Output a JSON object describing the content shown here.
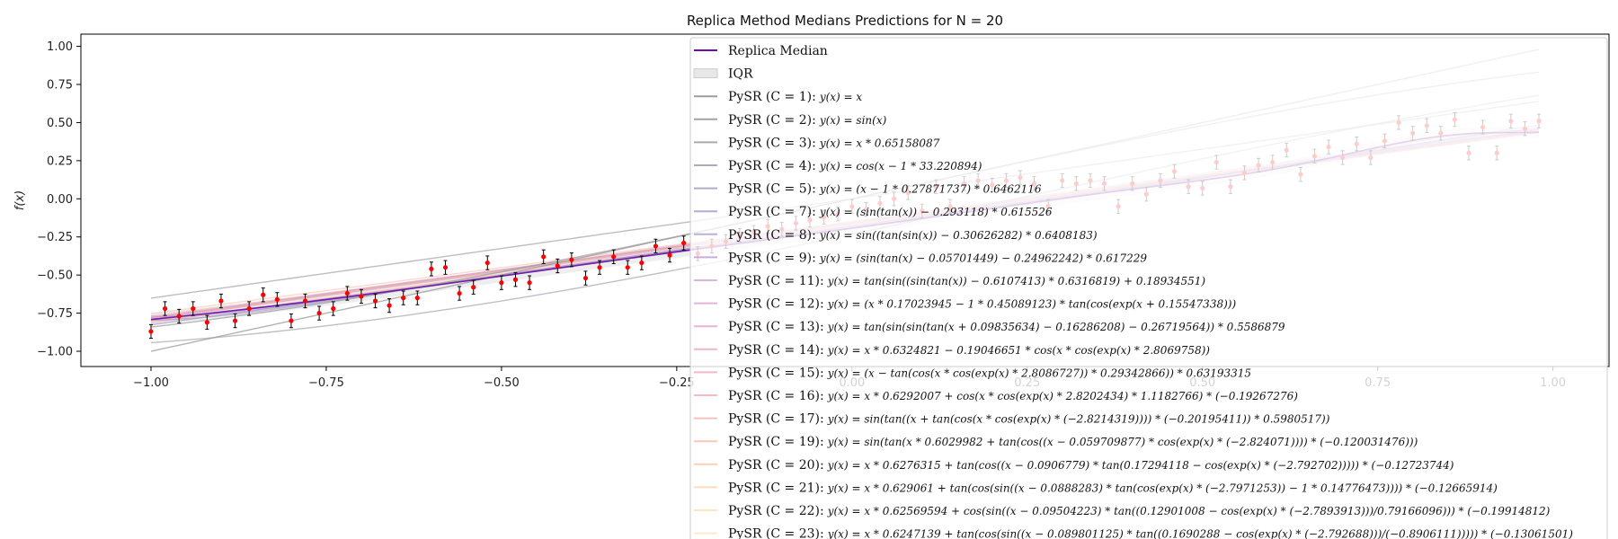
{
  "chart_data": {
    "type": "scatter",
    "title": "Replica Method Medians Predictions for N = 20",
    "xlabel": "",
    "ylabel": "f(x)",
    "xlim": [
      -1.1,
      1.08
    ],
    "ylim": [
      -1.1,
      1.08
    ],
    "xticks": [
      -1.0,
      -0.75,
      -0.5,
      -0.25,
      0.0,
      0.25,
      0.5,
      0.75,
      1.0
    ],
    "xtick_labels": [
      "−1.00",
      "−0.75",
      "−0.50",
      "−0.25",
      "0.00",
      "0.25",
      "0.50",
      "0.75",
      "1.00"
    ],
    "yticks": [
      -1.0,
      -0.75,
      -0.5,
      -0.25,
      0.0,
      0.25,
      0.5,
      0.75,
      1.0
    ],
    "ytick_labels": [
      "−1.00",
      "−0.75",
      "−0.50",
      "−0.25",
      "0.00",
      "0.25",
      "0.50",
      "0.75",
      "1.00"
    ],
    "legend_position": "top-right",
    "data_points": {
      "x": [
        -1.0,
        -0.98,
        -0.96,
        -0.94,
        -0.92,
        -0.9,
        -0.88,
        -0.86,
        -0.84,
        -0.82,
        -0.8,
        -0.78,
        -0.76,
        -0.74,
        -0.72,
        -0.7,
        -0.68,
        -0.66,
        -0.64,
        -0.62,
        -0.6,
        -0.58,
        -0.56,
        -0.54,
        -0.52,
        -0.5,
        -0.48,
        -0.46,
        -0.44,
        -0.42,
        -0.4,
        -0.38,
        -0.36,
        -0.34,
        -0.32,
        -0.3,
        -0.28,
        -0.26,
        -0.24,
        -0.22,
        -0.2,
        -0.18,
        -0.16,
        -0.14,
        -0.12,
        -0.1,
        -0.08,
        -0.06,
        -0.04,
        -0.02,
        0.0,
        0.02,
        0.04,
        0.06,
        0.08,
        0.1,
        0.12,
        0.14,
        0.16,
        0.18,
        0.2,
        0.22,
        0.24,
        0.26,
        0.28,
        0.3,
        0.32,
        0.34,
        0.36,
        0.38,
        0.4,
        0.42,
        0.44,
        0.46,
        0.48,
        0.5,
        0.52,
        0.54,
        0.56,
        0.58,
        0.6,
        0.62,
        0.64,
        0.66,
        0.68,
        0.7,
        0.72,
        0.74,
        0.76,
        0.78,
        0.8,
        0.82,
        0.84,
        0.86,
        0.88,
        0.9,
        0.92,
        0.94,
        0.96,
        0.98
      ],
      "y": [
        -0.87,
        -0.72,
        -0.77,
        -0.72,
        -0.81,
        -0.67,
        -0.8,
        -0.72,
        -0.63,
        -0.66,
        -0.8,
        -0.67,
        -0.75,
        -0.72,
        -0.62,
        -0.64,
        -0.67,
        -0.7,
        -0.65,
        -0.65,
        -0.46,
        -0.45,
        -0.62,
        -0.58,
        -0.42,
        -0.55,
        -0.53,
        -0.55,
        -0.38,
        -0.44,
        -0.4,
        -0.52,
        -0.45,
        -0.38,
        -0.45,
        -0.42,
        -0.31,
        -0.37,
        -0.29,
        -0.36,
        -0.31,
        -0.28,
        -0.24,
        -0.22,
        -0.18,
        -0.2,
        -0.16,
        -0.14,
        -0.12,
        -0.1,
        -0.05,
        -0.07,
        -0.03,
        0.0,
        0.04,
        -0.08,
        0.08,
        -0.05,
        0.1,
        0.12,
        0.09,
        0.12,
        0.14,
        0.1,
        -0.05,
        0.12,
        0.1,
        0.12,
        0.1,
        -0.05,
        0.1,
        0.03,
        0.12,
        0.18,
        0.08,
        0.07,
        0.24,
        0.08,
        0.17,
        0.22,
        0.24,
        0.32,
        0.16,
        0.28,
        0.34,
        0.27,
        0.36,
        0.27,
        0.38,
        0.5,
        0.43,
        0.48,
        0.43,
        0.52,
        0.3,
        0.47,
        0.3,
        0.51,
        0.46,
        0.51
      ],
      "yerr": 0.045,
      "color": "#ff0000"
    },
    "series": [
      {
        "name": "Replica Median",
        "formula": "",
        "color": "#6a0dad",
        "opacity": 0.9,
        "fx": "rm"
      },
      {
        "name": "IQR",
        "formula": "",
        "color": "#dddddd",
        "opacity": 0.6,
        "fx": "iqr"
      },
      {
        "name": "PySR (C = 1):",
        "formula": "y(x) = x",
        "color": "#999999",
        "opacity": 0.75,
        "fx": "c1"
      },
      {
        "name": "PySR (C = 2):",
        "formula": "y(x) = sin(x)",
        "color": "#999999",
        "opacity": 0.7,
        "fx": "c2"
      },
      {
        "name": "PySR (C = 3):",
        "formula": "y(x) = x * 0.65158087",
        "color": "#9a9aa4",
        "opacity": 0.65,
        "fx": "c3"
      },
      {
        "name": "PySR (C = 4):",
        "formula": "y(x) = cos(x − 1 * 33.220894)",
        "color": "#9c9cb0",
        "opacity": 0.65,
        "fx": "c4"
      },
      {
        "name": "PySR (C = 5):",
        "formula": "y(x) = (x − 1 * 0.27871737) * 0.6462116",
        "color": "#9898b8",
        "opacity": 0.6,
        "fx": "c5"
      },
      {
        "name": "PySR (C = 7):",
        "formula": "y(x) = (sin(tan(x)) − 0.293118) * 0.615526",
        "color": "#a08cc8",
        "opacity": 0.55,
        "fx": "c7"
      },
      {
        "name": "PySR (C = 8):",
        "formula": "y(x) = sin((tan(sin(x)) − 0.30626282) * 0.6408183)",
        "color": "#a28acc",
        "opacity": 0.5,
        "fx": "c8"
      },
      {
        "name": "PySR (C = 9):",
        "formula": "y(x) = (sin(tan(x) − 0.05701449) − 0.24962242) * 0.617229",
        "color": "#b08cc8",
        "opacity": 0.5,
        "fx": "c9"
      },
      {
        "name": "PySR (C = 11):",
        "formula": "y(x) = tan(sin((sin(tan(x)) − 0.6107413) * 0.6316819) + 0.18934551)",
        "color": "#c48cc8",
        "opacity": 0.45,
        "fx": "c11"
      },
      {
        "name": "PySR (C = 12):",
        "formula": "y(x) = (x * 0.17023945 − 1 * 0.45089123) * tan(cos(exp(x + 0.15547338)))",
        "color": "#d48cc0",
        "opacity": 0.45,
        "fx": "c12"
      },
      {
        "name": "PySR (C = 13):",
        "formula": "y(x) = tan(sin(sin(tan(x + 0.09835634) − 0.16286208) − 0.26719564)) * 0.5586879",
        "color": "#dc8cb8",
        "opacity": 0.45,
        "fx": "c13"
      },
      {
        "name": "PySR (C = 14):",
        "formula": "y(x) = x * 0.6324821 − 0.19046651 * cos(x * cos(exp(x) * 2.8069758))",
        "color": "#e090b0",
        "opacity": 0.45,
        "fx": "c14"
      },
      {
        "name": "PySR (C = 15):",
        "formula": "y(x) = (x − tan(cos(x * cos(exp(x) * 2.8086727)) * 0.29342866)) * 0.63193315",
        "color": "#e894a8",
        "opacity": 0.45,
        "fx": "c15"
      },
      {
        "name": "PySR (C = 16):",
        "formula": "y(x) = x * 0.6292007 + cos(x * cos(exp(x) * 2.8202434) * 1.1182766) * (−0.19267276)",
        "color": "#ee98a0",
        "opacity": 0.45,
        "fx": "c16"
      },
      {
        "name": "PySR (C = 17):",
        "formula": "y(x) = sin(tan((x + tan(cos(x * cos(exp(x) * (−2.8214319)))) * (−0.20195411)) * 0.5980517))",
        "color": "#f4a098",
        "opacity": 0.45,
        "fx": "c17"
      },
      {
        "name": "PySR (C = 19):",
        "formula": "y(x) = sin(tan(x * 0.6029982 + tan(cos((x − 0.059709877) * cos(exp(x) * (−2.824071)))) * (−0.120031476)))",
        "color": "#f8a890",
        "opacity": 0.45,
        "fx": "c19"
      },
      {
        "name": "PySR (C = 20):",
        "formula": "y(x) = x * 0.6276315 + tan(cos((x − 0.0906779) * tan(0.17294118 − cos(exp(x) * (−2.792702))))) * (−0.12723744)",
        "color": "#f8b890",
        "opacity": 0.45,
        "fx": "c20"
      },
      {
        "name": "PySR (C = 21):",
        "formula": "y(x) = x * 0.629061 + tan(cos(sin((x − 0.0888283) * tan(cos(exp(x) * (−2.7971253)) − 1 * 0.14776473)))) * (−0.12665914)",
        "color": "#f8c898",
        "opacity": 0.45,
        "fx": "c21"
      },
      {
        "name": "PySR (C = 22):",
        "formula": "y(x) = x * 0.62569594 + cos(sin((x − 0.09504223) * tan((0.12901008 − cos(exp(x) * (−2.7893913)))/0.79166096))) * (−0.19914812)",
        "color": "#f8d8a0",
        "opacity": 0.45,
        "fx": "c22"
      },
      {
        "name": "PySR (C = 23):",
        "formula": "y(x) = x * 0.6247139 + tan(cos(sin((x − 0.089801125) * tan((0.1690288 − cos(exp(x) * (−2.792688)))/(−0.8906111))))) * (−0.13061501)",
        "color": "#f8e0b0",
        "opacity": 0.45,
        "fx": "c23"
      }
    ]
  }
}
